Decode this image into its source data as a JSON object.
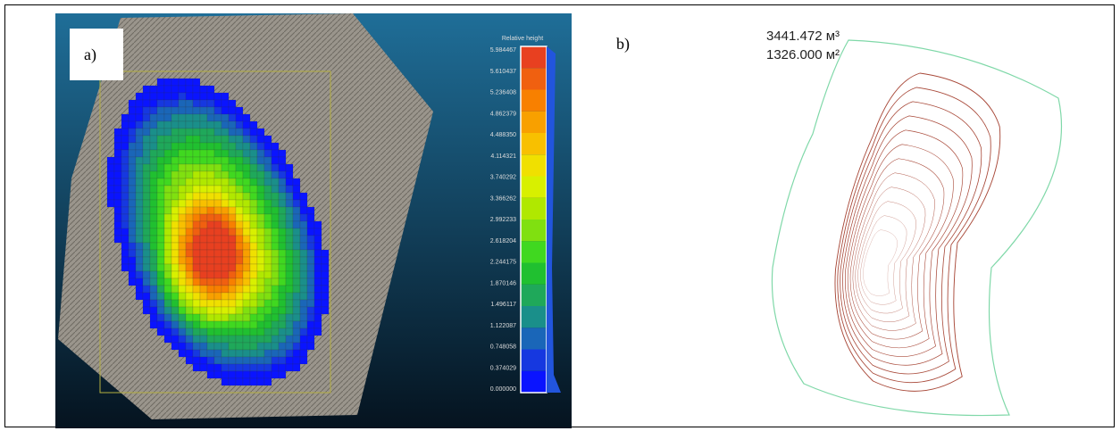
{
  "panel_a": {
    "label": "a)",
    "colorbar": {
      "title": "Relative height",
      "ticks": [
        "5.984467",
        "5.610437",
        "5.236408",
        "4.862379",
        "4.488350",
        "4.114321",
        "3.740292",
        "3.366262",
        "2.992233",
        "2.618204",
        "2.244175",
        "1.870146",
        "1.496117",
        "1.122087",
        "0.748058",
        "0.374029",
        "0.000000"
      ]
    }
  },
  "panel_b": {
    "label": "b)",
    "volume": "3441.472 м³",
    "area": "1326.000 м²"
  }
}
